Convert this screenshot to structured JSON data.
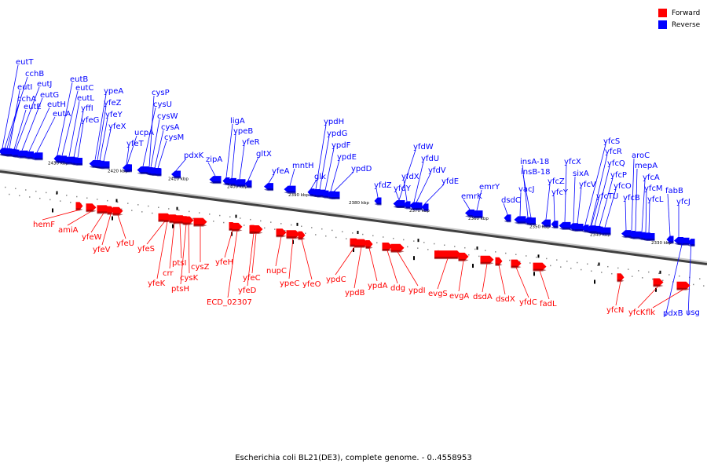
{
  "caption": "Escherichia coli BL21(DE3), complete genome. - 0..4558953",
  "legend": [
    {
      "label": "Forward",
      "color": "#ff0000"
    },
    {
      "label": "Reverse",
      "color": "#0000ff"
    }
  ],
  "colors": {
    "forward": "#ff0000",
    "reverse": "#0000ff",
    "backbone": "#808080"
  },
  "ticks": [
    "2430 kbp",
    "2420 kbp",
    "2410 kbp",
    "2400 kbp",
    "2390 kbp",
    "2380 kbp",
    "2370 kbp",
    "2360 kbp",
    "2350 kbp",
    "2340 kbp",
    "2330 kbp"
  ],
  "reverse_genes": [
    "eutT",
    "cchB",
    "eutI",
    "eutJ",
    "cchA",
    "eutG",
    "eutE",
    "eutH",
    "eutA",
    "eutB",
    "eutC",
    "eutL",
    "yffI",
    "yfeG",
    "ypeA",
    "yfeZ",
    "yfeY",
    "yfeX",
    "cysP",
    "ucpA",
    "cysU",
    "yfeT",
    "cysW",
    "cysA",
    "cysM",
    "pdxK",
    "zipA",
    "ligA",
    "ypeB",
    "yfeR",
    "gltX",
    "yfeA",
    "mntH",
    "glk",
    "ypdH",
    "ypdG",
    "ypdF",
    "ypdE",
    "ypdD",
    "yfdZ",
    "yfdW",
    "yfdY",
    "yfdX",
    "yfdU",
    "yfdV",
    "yfdE",
    "emrK",
    "emrY",
    "insA-18",
    "insB-18",
    "vacJ",
    "dsdC",
    "yfcZ",
    "yfcX",
    "yfcY",
    "sixA",
    "yfcV",
    "yfcS",
    "yfcR",
    "yfcQ",
    "yfcP",
    "yfcTU",
    "yfcO",
    "aroC",
    "yfcB",
    "mepA",
    "yfcA",
    "yfcM",
    "yfcL",
    "fabB",
    "yfcJ",
    "pdxB",
    "usg"
  ],
  "forward_genes": [
    "hemF",
    "amiA",
    "yfeW",
    "yfeV",
    "yfeU",
    "yfeS",
    "yfeK",
    "crr",
    "ptsI",
    "ptsH",
    "cysK",
    "cysZ",
    "yfeH",
    "ECD_02307",
    "yfeC",
    "yfeD",
    "nupC",
    "ypeC",
    "yfeO",
    "ypdC",
    "ypdB",
    "ypdA",
    "ddg",
    "ypdI",
    "evgS",
    "evgA",
    "dsdA",
    "dsdX",
    "yfdC",
    "fadL",
    "yfcN",
    "yfcK",
    "flk"
  ]
}
